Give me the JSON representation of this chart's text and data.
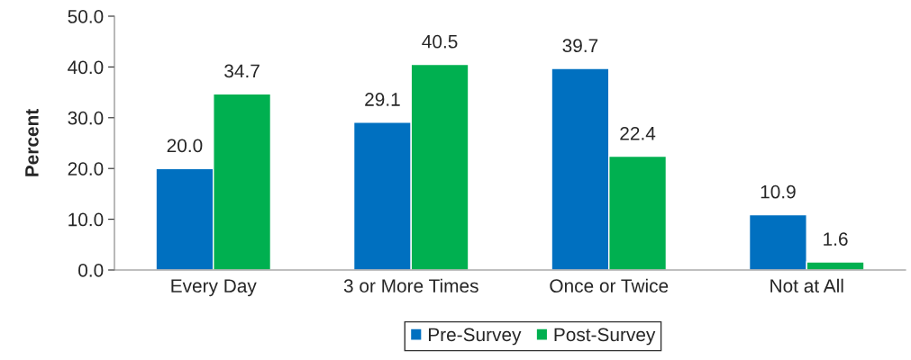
{
  "chart_data": {
    "type": "bar",
    "ylabel": "Percent",
    "categories": [
      "Every Day",
      "3 or More Times",
      "Once or Twice",
      "Not at All"
    ],
    "series": [
      {
        "name": "Pre-Survey",
        "color": "#0070c0",
        "values": [
          20.0,
          29.1,
          39.7,
          10.9
        ],
        "value_labels": [
          "20.0",
          "29.1",
          "39.7",
          "10.9"
        ]
      },
      {
        "name": "Post-Survey",
        "color": "#00b050",
        "values": [
          34.7,
          40.5,
          22.4,
          1.6
        ],
        "value_labels": [
          "34.7",
          "40.5",
          "22.4",
          "1.6"
        ]
      }
    ],
    "ylim": [
      0,
      50
    ],
    "yticks": [
      {
        "value": 0,
        "label": "0.0"
      },
      {
        "value": 10,
        "label": "10.0"
      },
      {
        "value": 20,
        "label": "20.0"
      },
      {
        "value": 30,
        "label": "30.0"
      },
      {
        "value": 40,
        "label": "40.0"
      },
      {
        "value": 50,
        "label": "50.0"
      }
    ],
    "grid": false,
    "legend": "bottom"
  }
}
